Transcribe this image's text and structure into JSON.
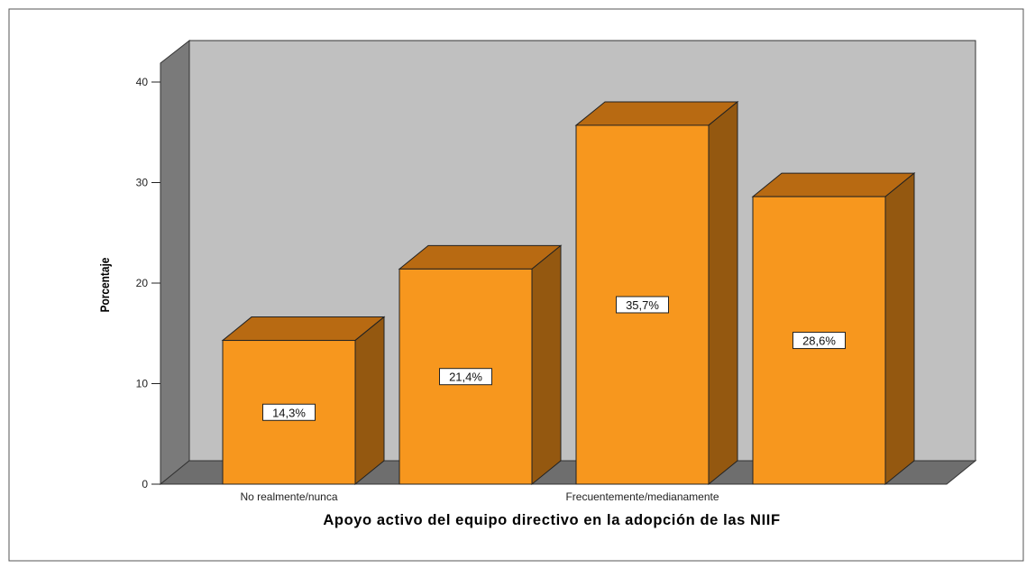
{
  "chart_data": {
    "type": "bar",
    "style": "3d",
    "categories": [
      "",
      "",
      "",
      ""
    ],
    "tick_labels_shown": [
      "No realmente/nunca",
      "Frecuentemente/medianamente"
    ],
    "values": [
      14.3,
      21.4,
      35.7,
      28.6
    ],
    "data_labels": [
      "14,3%",
      "21,4%",
      "35,7%",
      "28,6%"
    ],
    "xlabel": "Apoyo activo del equipo directivo en la adopción de las NIIF",
    "ylabel": "Porcentaje",
    "ylim": [
      0,
      40
    ],
    "yticks": [
      0,
      10,
      20,
      30,
      40
    ],
    "ytick_labels": [
      "0",
      "10",
      "20",
      "30",
      "40"
    ],
    "grid": false,
    "colors": {
      "bar_front": "#F7971E",
      "bar_side": "#945810",
      "bar_top": "#B86A12",
      "back_wall": "#C0C0C0",
      "side_wall": "#7A7A7A",
      "floor": "#6E6E6E"
    }
  }
}
